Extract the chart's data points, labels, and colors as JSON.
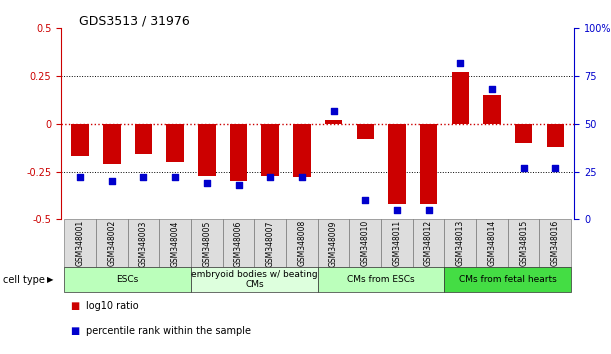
{
  "title": "GDS3513 / 31976",
  "samples": [
    "GSM348001",
    "GSM348002",
    "GSM348003",
    "GSM348004",
    "GSM348005",
    "GSM348006",
    "GSM348007",
    "GSM348008",
    "GSM348009",
    "GSM348010",
    "GSM348011",
    "GSM348012",
    "GSM348013",
    "GSM348014",
    "GSM348015",
    "GSM348016"
  ],
  "log10_ratio": [
    -0.17,
    -0.21,
    -0.16,
    -0.2,
    -0.27,
    -0.3,
    -0.27,
    -0.28,
    0.02,
    -0.08,
    -0.42,
    -0.42,
    0.27,
    0.15,
    -0.1,
    -0.12
  ],
  "percentile_rank": [
    22,
    20,
    22,
    22,
    19,
    18,
    22,
    22,
    57,
    10,
    5,
    5,
    82,
    68,
    27,
    27
  ],
  "cell_type_groups": [
    {
      "label": "ESCs",
      "start": 0,
      "end": 3,
      "color": "#bbffbb"
    },
    {
      "label": "embryoid bodies w/ beating\nCMs",
      "start": 4,
      "end": 7,
      "color": "#ddffdd"
    },
    {
      "label": "CMs from ESCs",
      "start": 8,
      "end": 11,
      "color": "#bbffbb"
    },
    {
      "label": "CMs from fetal hearts",
      "start": 12,
      "end": 15,
      "color": "#44dd44"
    }
  ],
  "ylim_left": [
    -0.5,
    0.5
  ],
  "ylim_right": [
    0,
    100
  ],
  "bar_color": "#cc0000",
  "dot_color": "#0000cc",
  "hline_color": "#cc0000",
  "grid_color": "#000000",
  "background_color": "#ffffff",
  "left_yticks": [
    -0.5,
    -0.25,
    0,
    0.25,
    0.5
  ],
  "left_yticklabels": [
    "-0.5",
    "-0.25",
    "0",
    "0.25",
    "0.5"
  ],
  "right_yticks": [
    0,
    25,
    50,
    75,
    100
  ],
  "right_yticklabels": [
    "0",
    "25",
    "50",
    "75",
    "100%"
  ],
  "title_fontsize": 9,
  "tick_fontsize": 7,
  "sample_fontsize": 5.5,
  "group_fontsize": 6.5,
  "legend_fontsize": 7
}
